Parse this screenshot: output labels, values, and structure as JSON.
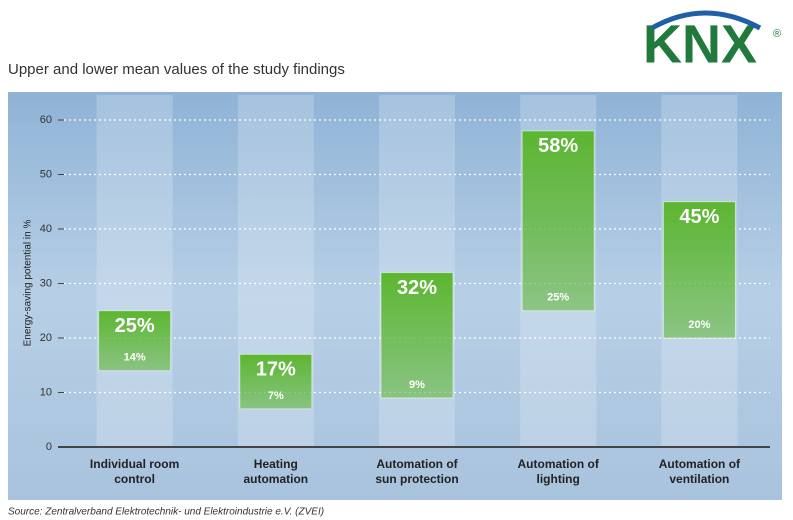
{
  "chart_data": {
    "type": "bar",
    "title": "Upper and lower mean values of the study findings",
    "logo": "KNX",
    "logo_mark": "®",
    "y_label": "Energy-saving potential in %",
    "source": "Source: Zentralverband Elektrotechnik- und Elektroindustrie e.V. (ZVEI)",
    "categories": [
      "Individual room control",
      "Heating automation",
      "Automation of sun protection",
      "Automation of lighting",
      "Automation of ventilation"
    ],
    "series": [
      {
        "values": [
          14,
          7,
          9,
          25,
          20
        ],
        "value_labels": [
          "14%",
          "7%",
          "9%",
          "25%",
          "20%"
        ]
      },
      {
        "values": [
          25,
          17,
          32,
          58,
          45
        ],
        "value_labels": [
          "25%",
          "17%",
          "32%",
          "58%",
          "45%"
        ]
      }
    ],
    "color": "#5cb630",
    "ylim": [
      0,
      60
    ],
    "yticks": [
      0,
      10,
      20,
      30,
      40,
      50,
      60
    ],
    "grid": true
  }
}
